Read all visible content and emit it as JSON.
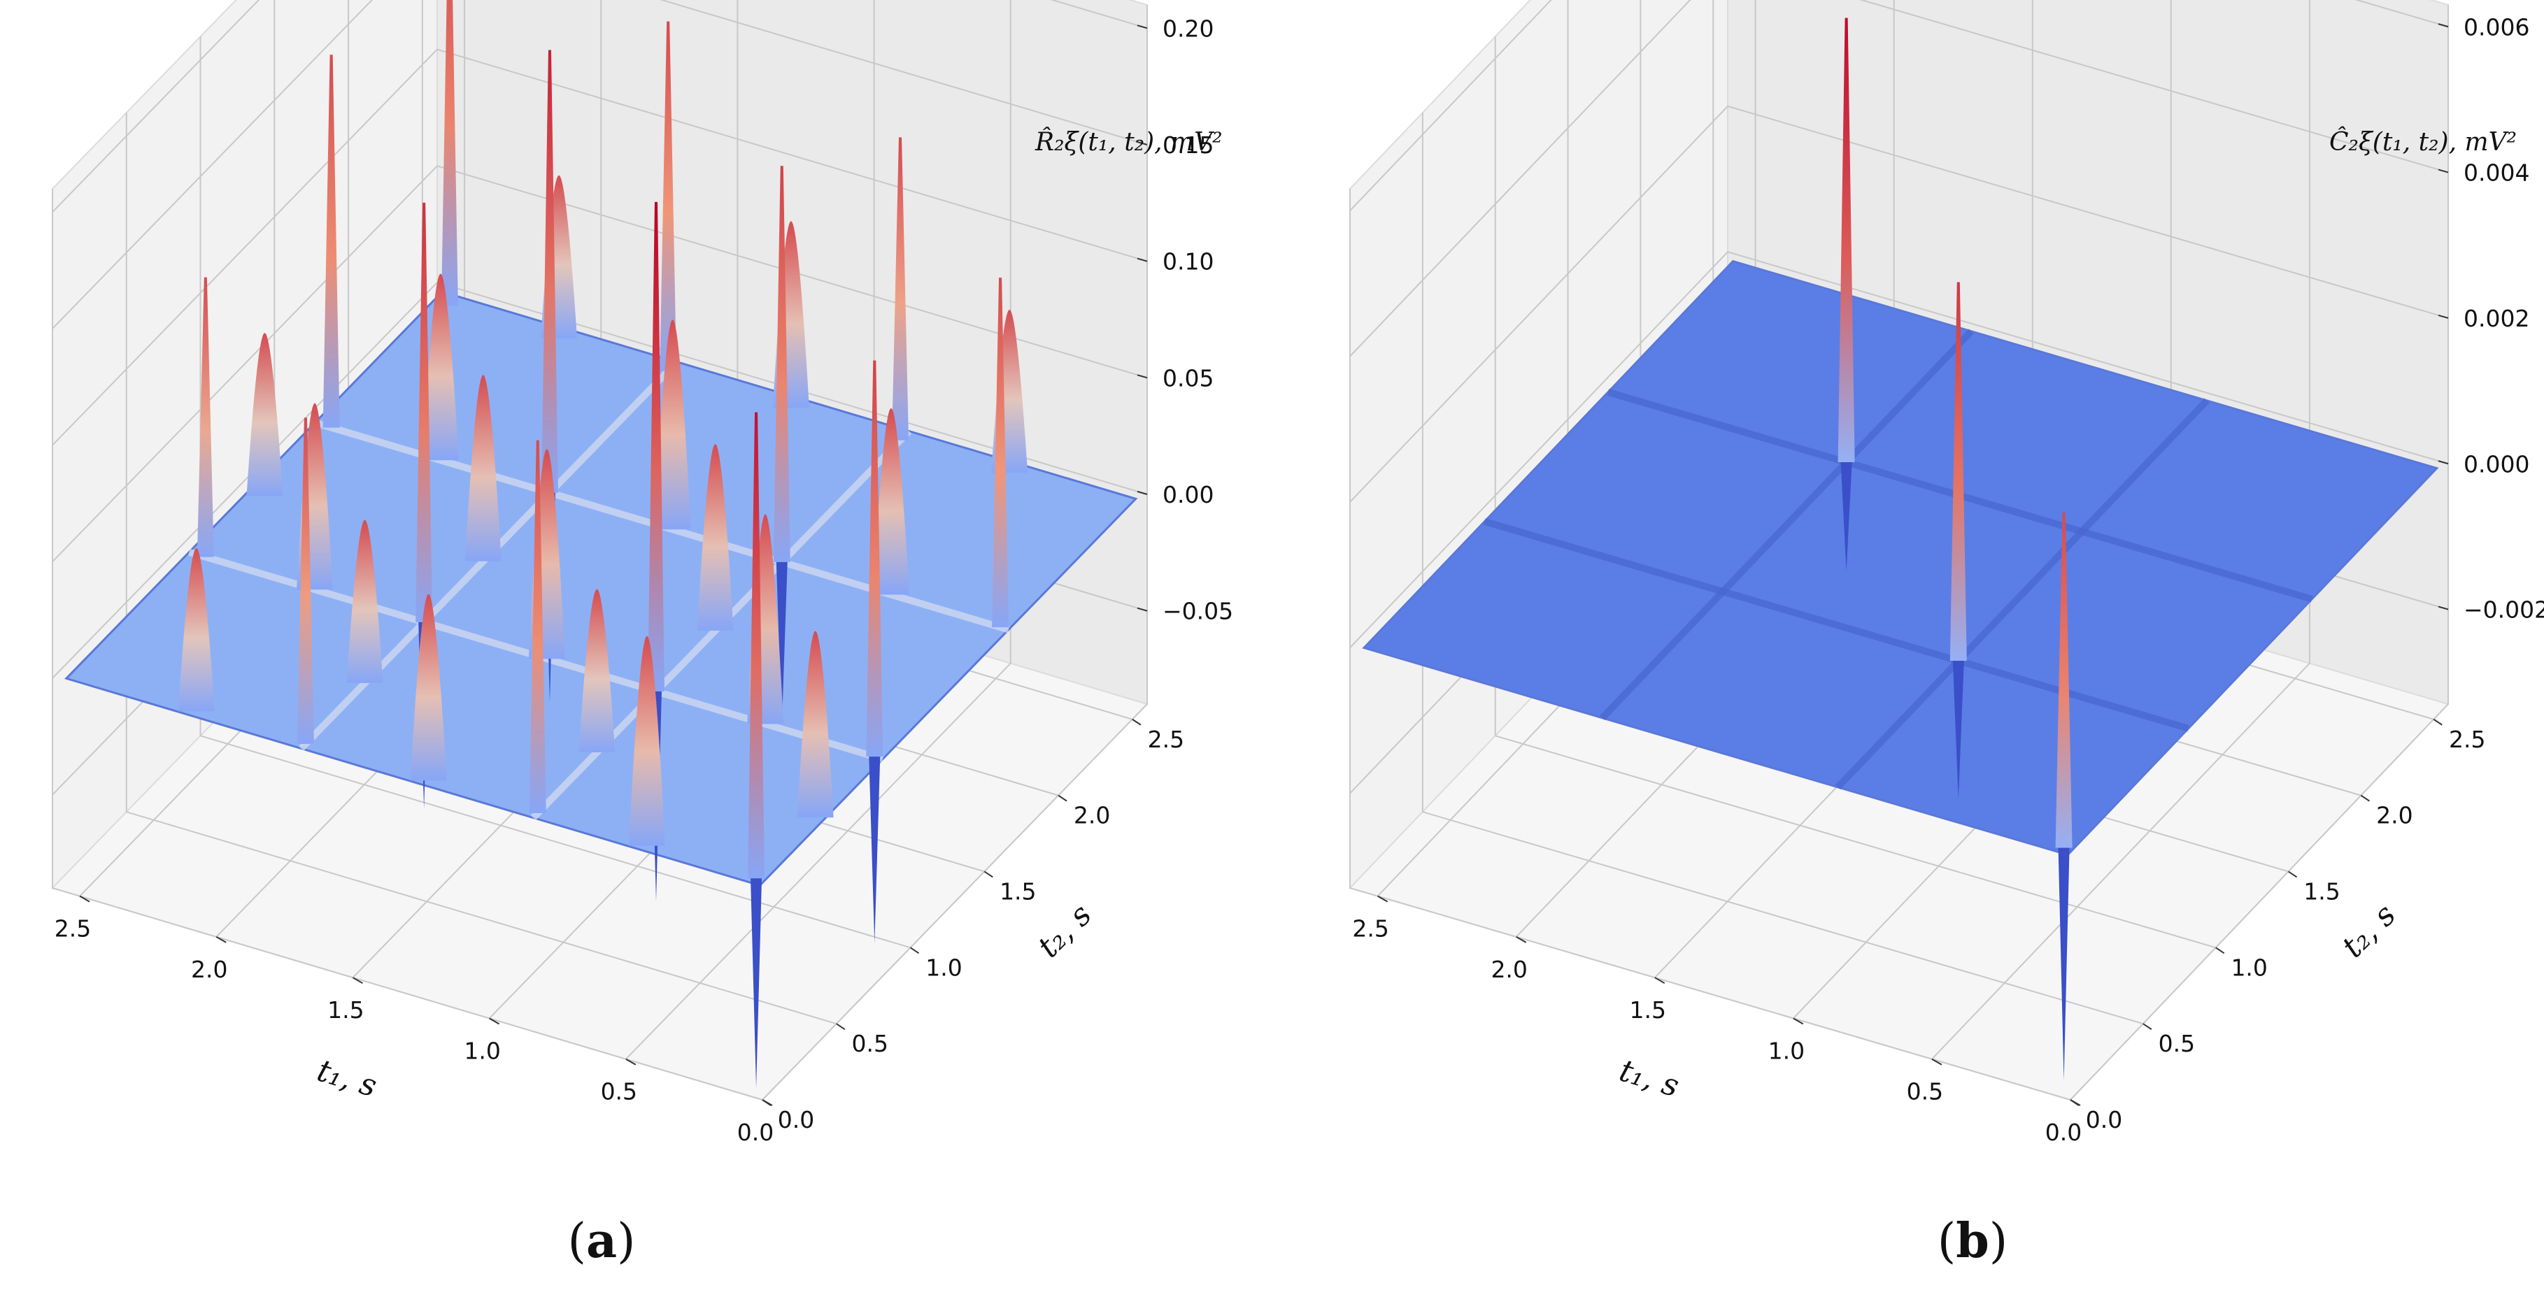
{
  "captions": {
    "a_open": "(",
    "a_letter": "a",
    "a_close": ")",
    "b_open": "(",
    "b_letter": "b",
    "b_close": ")"
  },
  "colors": {
    "surface_base": "#6e8ff0",
    "peak_top": "#c00028",
    "dip": "#3a4fc8",
    "pane": "#f2f2f2",
    "grid": "#c8c8c8"
  },
  "chart_data": [
    {
      "id": "a",
      "type": "surface3d",
      "title": "",
      "xlabel": "t₁, s",
      "ylabel": "t₂, s",
      "zlabel": "R̂₂ξ(t₁, t₂), mV²",
      "xlim": [
        0,
        2.6
      ],
      "ylim": [
        0,
        2.6
      ],
      "zlim": [
        -0.09,
        0.21
      ],
      "x_ticks": [
        "0.0",
        "0.5",
        "1.0",
        "1.5",
        "2.0",
        "2.5"
      ],
      "y_ticks": [
        "0.0",
        "0.5",
        "1.0",
        "1.5",
        "2.0",
        "2.5"
      ],
      "z_ticks": [
        "−0.05",
        "0.00",
        "0.05",
        "0.10",
        "0.15",
        "0.20"
      ],
      "z_tick_values": [
        -0.05,
        0,
        0.05,
        0.1,
        0.15,
        0.2
      ],
      "surface_level": 0.0,
      "colormap": "coolwarm",
      "peaks": [
        {
          "t1": 0.05,
          "t2": 0.05,
          "z": 0.2
        },
        {
          "t1": 0.85,
          "t2": 0.85,
          "z": 0.21
        },
        {
          "t1": 1.7,
          "t2": 1.7,
          "z": 0.19
        },
        {
          "t1": 2.5,
          "t2": 2.5,
          "z": 0.17
        },
        {
          "t1": 0.05,
          "t2": 0.85,
          "z": 0.17
        },
        {
          "t1": 0.85,
          "t2": 0.05,
          "z": 0.16
        },
        {
          "t1": 0.85,
          "t2": 1.7,
          "z": 0.17
        },
        {
          "t1": 1.7,
          "t2": 0.85,
          "z": 0.18
        },
        {
          "t1": 1.7,
          "t2": 2.5,
          "z": 0.15
        },
        {
          "t1": 2.5,
          "t2": 1.7,
          "z": 0.16
        },
        {
          "t1": 0.05,
          "t2": 1.7,
          "z": 0.15
        },
        {
          "t1": 1.7,
          "t2": 0.05,
          "z": 0.14
        },
        {
          "t1": 2.5,
          "t2": 0.85,
          "z": 0.12
        },
        {
          "t1": 0.85,
          "t2": 2.5,
          "z": 0.13
        }
      ],
      "humps": [
        {
          "t1": 0.45,
          "t2": 0.05,
          "z": 0.09
        },
        {
          "t1": 0.05,
          "t2": 0.45,
          "z": 0.08
        },
        {
          "t1": 1.25,
          "t2": 0.05,
          "z": 0.08
        },
        {
          "t1": 2.1,
          "t2": 0.05,
          "z": 0.07
        },
        {
          "t1": 0.45,
          "t2": 0.85,
          "z": 0.09
        },
        {
          "t1": 1.25,
          "t2": 0.85,
          "z": 0.09
        },
        {
          "t1": 2.1,
          "t2": 0.85,
          "z": 0.08
        },
        {
          "t1": 0.45,
          "t2": 1.7,
          "z": 0.08
        },
        {
          "t1": 1.25,
          "t2": 1.7,
          "z": 0.09
        },
        {
          "t1": 2.1,
          "t2": 1.7,
          "z": 0.08
        },
        {
          "t1": 0.45,
          "t2": 2.5,
          "z": 0.07
        },
        {
          "t1": 1.25,
          "t2": 2.5,
          "z": 0.08
        },
        {
          "t1": 2.1,
          "t2": 2.5,
          "z": 0.07
        },
        {
          "t1": 0.85,
          "t2": 0.45,
          "z": 0.07
        },
        {
          "t1": 0.85,
          "t2": 1.25,
          "z": 0.08
        },
        {
          "t1": 1.7,
          "t2": 1.25,
          "z": 0.08
        },
        {
          "t1": 1.7,
          "t2": 0.45,
          "z": 0.07
        },
        {
          "t1": 2.5,
          "t2": 1.25,
          "z": 0.07
        }
      ],
      "dips": [
        {
          "t1": 0.05,
          "t2": 0.05,
          "z": -0.09
        },
        {
          "t1": 0.85,
          "t2": 0.85,
          "z": -0.09
        },
        {
          "t1": 1.7,
          "t2": 1.7,
          "z": -0.09
        },
        {
          "t1": 0.05,
          "t2": 0.85,
          "z": -0.08
        },
        {
          "t1": 1.7,
          "t2": 0.85,
          "z": -0.08
        },
        {
          "t1": 0.85,
          "t2": 1.7,
          "z": -0.07
        }
      ]
    },
    {
      "id": "b",
      "type": "surface3d",
      "title": "",
      "xlabel": "t₁, s",
      "ylabel": "t₂, s",
      "zlabel": "Ĉ₂ξ(t₁, t₂), mV²",
      "xlim": [
        0,
        2.6
      ],
      "ylim": [
        0,
        2.6
      ],
      "zlim": [
        -0.0033,
        0.0063
      ],
      "x_ticks": [
        "0.0",
        "0.5",
        "1.0",
        "1.5",
        "2.0",
        "2.5"
      ],
      "y_ticks": [
        "0.0",
        "0.5",
        "1.0",
        "1.5",
        "2.0",
        "2.5"
      ],
      "z_ticks": [
        "−0.002",
        "0.000",
        "0.002",
        "0.004",
        "0.006"
      ],
      "z_tick_values": [
        -0.002,
        0,
        0.002,
        0.004,
        0.006
      ],
      "surface_level": 0.0,
      "colormap": "coolwarm",
      "peaks": [
        {
          "t1": 0.05,
          "t2": 0.05,
          "z": 0.0046
        },
        {
          "t1": 0.85,
          "t2": 0.85,
          "z": 0.0052
        },
        {
          "t1": 1.7,
          "t2": 1.7,
          "z": 0.0061
        }
      ],
      "humps": [],
      "dips": [
        {
          "t1": 0.05,
          "t2": 0.05,
          "z": -0.0032
        },
        {
          "t1": 0.85,
          "t2": 0.85,
          "z": -0.0019
        },
        {
          "t1": 1.7,
          "t2": 1.7,
          "z": -0.0015
        }
      ]
    }
  ]
}
